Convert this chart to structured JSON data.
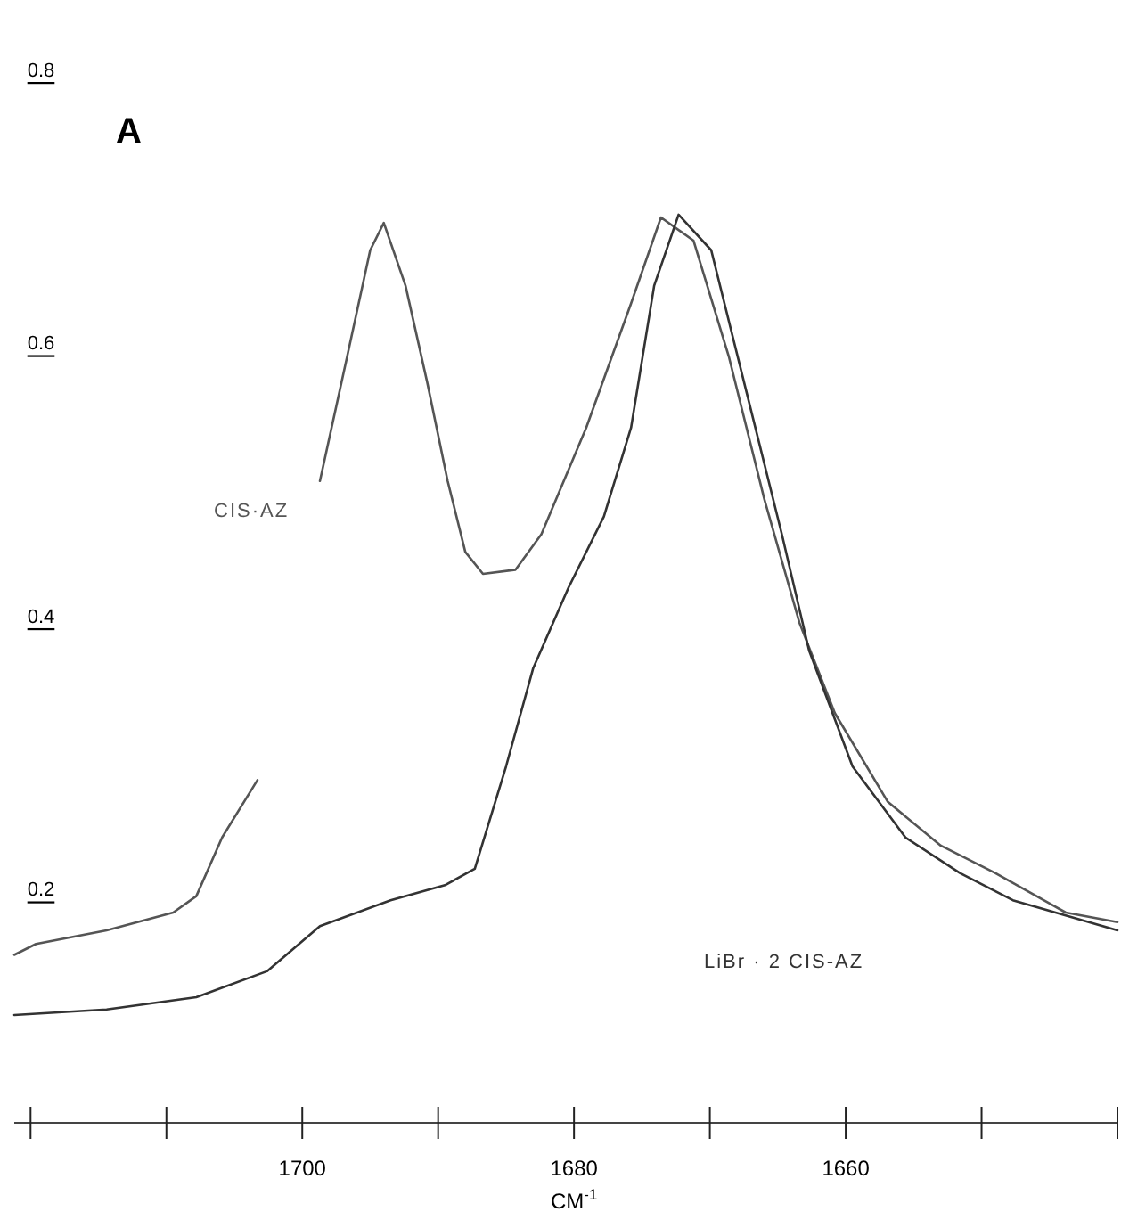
{
  "chart_data": {
    "type": "line",
    "title": "A",
    "xlabel": "CM$^{-1}$",
    "xlim": [
      1721.2,
      1640
    ],
    "ylim": [
      0.03,
      0.8
    ],
    "xticks": [
      {
        "value": 1720,
        "label": null
      },
      {
        "value": 1710,
        "label": null
      },
      1700,
      {
        "value": 1690,
        "label": null
      },
      1680,
      {
        "value": 1670,
        "label": null
      },
      1660,
      {
        "value": 1650,
        "label": null
      },
      {
        "value": 1640,
        "label": null
      }
    ],
    "yticks": [
      0.2,
      0.4,
      0.6,
      0.8
    ],
    "grid": false,
    "legend": false,
    "marker": "none",
    "line_style": "solid",
    "series": [
      {
        "name": "CIS·AZ",
        "color": "#555555",
        "x": [
          1721.2,
          1719.6,
          1714.4,
          1709.5,
          1707.8,
          1705.9,
          1703.3,
          1701,
          1698.7,
          1696.7,
          1695.0,
          1694.0,
          1692.4,
          1690.8,
          1689.3,
          1688.0,
          1686.7,
          1684.3,
          1682.4,
          1679.1,
          1675.8,
          1673.6,
          1671.2,
          1668.6,
          1666.0,
          1663.4,
          1660.8,
          1656.9,
          1653.0,
          1649.0,
          1643.8,
          1640.0
        ],
        "values": [
          0.153,
          0.161,
          0.171,
          0.184,
          0.196,
          0.239,
          0.281,
          null,
          0.5,
          0.591,
          0.669,
          0.689,
          0.643,
          0.572,
          0.5,
          0.448,
          0.432,
          0.435,
          0.461,
          0.539,
          0.63,
          0.693,
          0.676,
          0.591,
          0.487,
          0.396,
          0.33,
          0.265,
          0.233,
          0.213,
          0.184,
          0.177
        ]
      },
      {
        "name": "LiBr · 2 CIS-AZ",
        "color": "#333333",
        "x": [
          1721.2,
          1714.4,
          1707.8,
          1702.6,
          1698.7,
          1693.5,
          1689.5,
          1687.3,
          1685.0,
          1683.0,
          1680.4,
          1677.8,
          1675.8,
          1674.1,
          1672.3,
          1669.9,
          1667.3,
          1664.7,
          1662.7,
          1659.5,
          1655.6,
          1651.6,
          1647.7,
          1640.0
        ],
        "values": [
          0.109,
          0.113,
          0.122,
          0.141,
          0.174,
          0.193,
          0.204,
          0.216,
          0.291,
          0.363,
          0.422,
          0.474,
          0.539,
          0.643,
          0.695,
          0.669,
          0.565,
          0.461,
          0.376,
          0.291,
          0.239,
          0.213,
          0.193,
          0.171
        ]
      }
    ]
  }
}
